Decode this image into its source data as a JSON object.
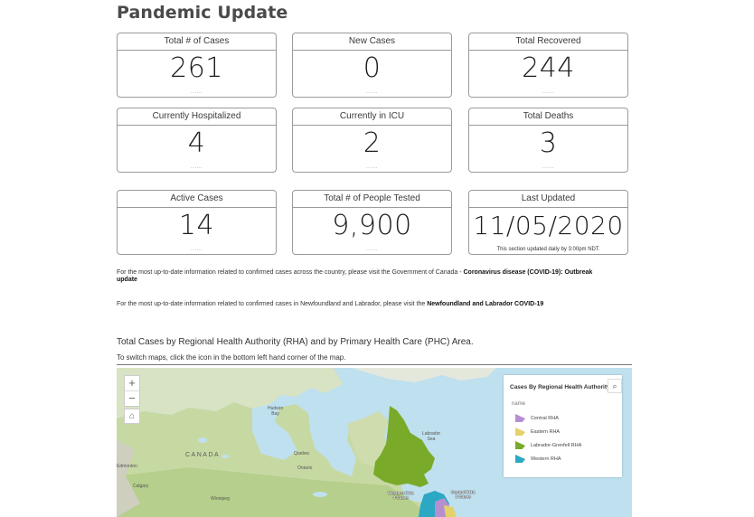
{
  "page": {
    "title": "Pandemic Update"
  },
  "cards": {
    "total_cases": {
      "label": "Total # of Cases",
      "value": "261"
    },
    "new_cases": {
      "label": "New Cases",
      "value": "0"
    },
    "total_recovered": {
      "label": "Total Recovered",
      "value": "244"
    },
    "hospitalized": {
      "label": "Currently Hospitalized",
      "value": "4"
    },
    "icu": {
      "label": "Currently in ICU",
      "value": "2"
    },
    "deaths": {
      "label": "Total Deaths",
      "value": "3"
    },
    "active": {
      "label": "Active Cases",
      "value": "14"
    },
    "tested": {
      "label": "Total # of People Tested",
      "value": "9,900"
    },
    "last_updated": {
      "label": "Last Updated",
      "value": "11/05/2020",
      "note": "This section updated daily by 3:00pm NDT."
    },
    "dots": "......"
  },
  "info": {
    "canada_text": "For the most up-to-date information related to confirmed cases across the country, please visit the Government of Canada - ",
    "canada_link": "Coronavirus disease (COVID-19): Outbreak update",
    "nl_text": "For the most up-to-date information related to confirmed cases in Newfoundland and Labrador, please visit the ",
    "nl_link": "Newfoundland and Labrador COVID-19"
  },
  "map_section": {
    "title": "Total Cases by Regional Health Authority (RHA) and by Primary Health Care (PHC) Area.",
    "subtitle": "To switch maps, click the icon in the bottom left hand corner of the map."
  },
  "map": {
    "zoom_in": "+",
    "zoom_out": "−",
    "home_icon": "home-icon",
    "labels": {
      "hudson_bay": "Hudson\nBay",
      "labrador_sea": "Labrador\nSea",
      "canada": "CANADA",
      "edmonton": "Edmonton",
      "calgary": "Calgary",
      "winnipeg": "Winnipeg",
      "quebec": "Quebec",
      "ontario": "Ontario",
      "western_rha": "Western RHA\n4 Cases",
      "central_rha": "Central RHA\n3 Cases"
    },
    "legend": {
      "title": "Cases By Regional Health Authority",
      "field": "name",
      "search_icon": "search-icon",
      "items": [
        {
          "label": "Central RHA",
          "color": "#b58fcf"
        },
        {
          "label": "Eastern RHA",
          "color": "#e3d26a"
        },
        {
          "label": "Labrador-Grenfell RHA",
          "color": "#7aaa2a"
        },
        {
          "label": "Western RHA",
          "color": "#2aa8c4"
        }
      ]
    }
  }
}
